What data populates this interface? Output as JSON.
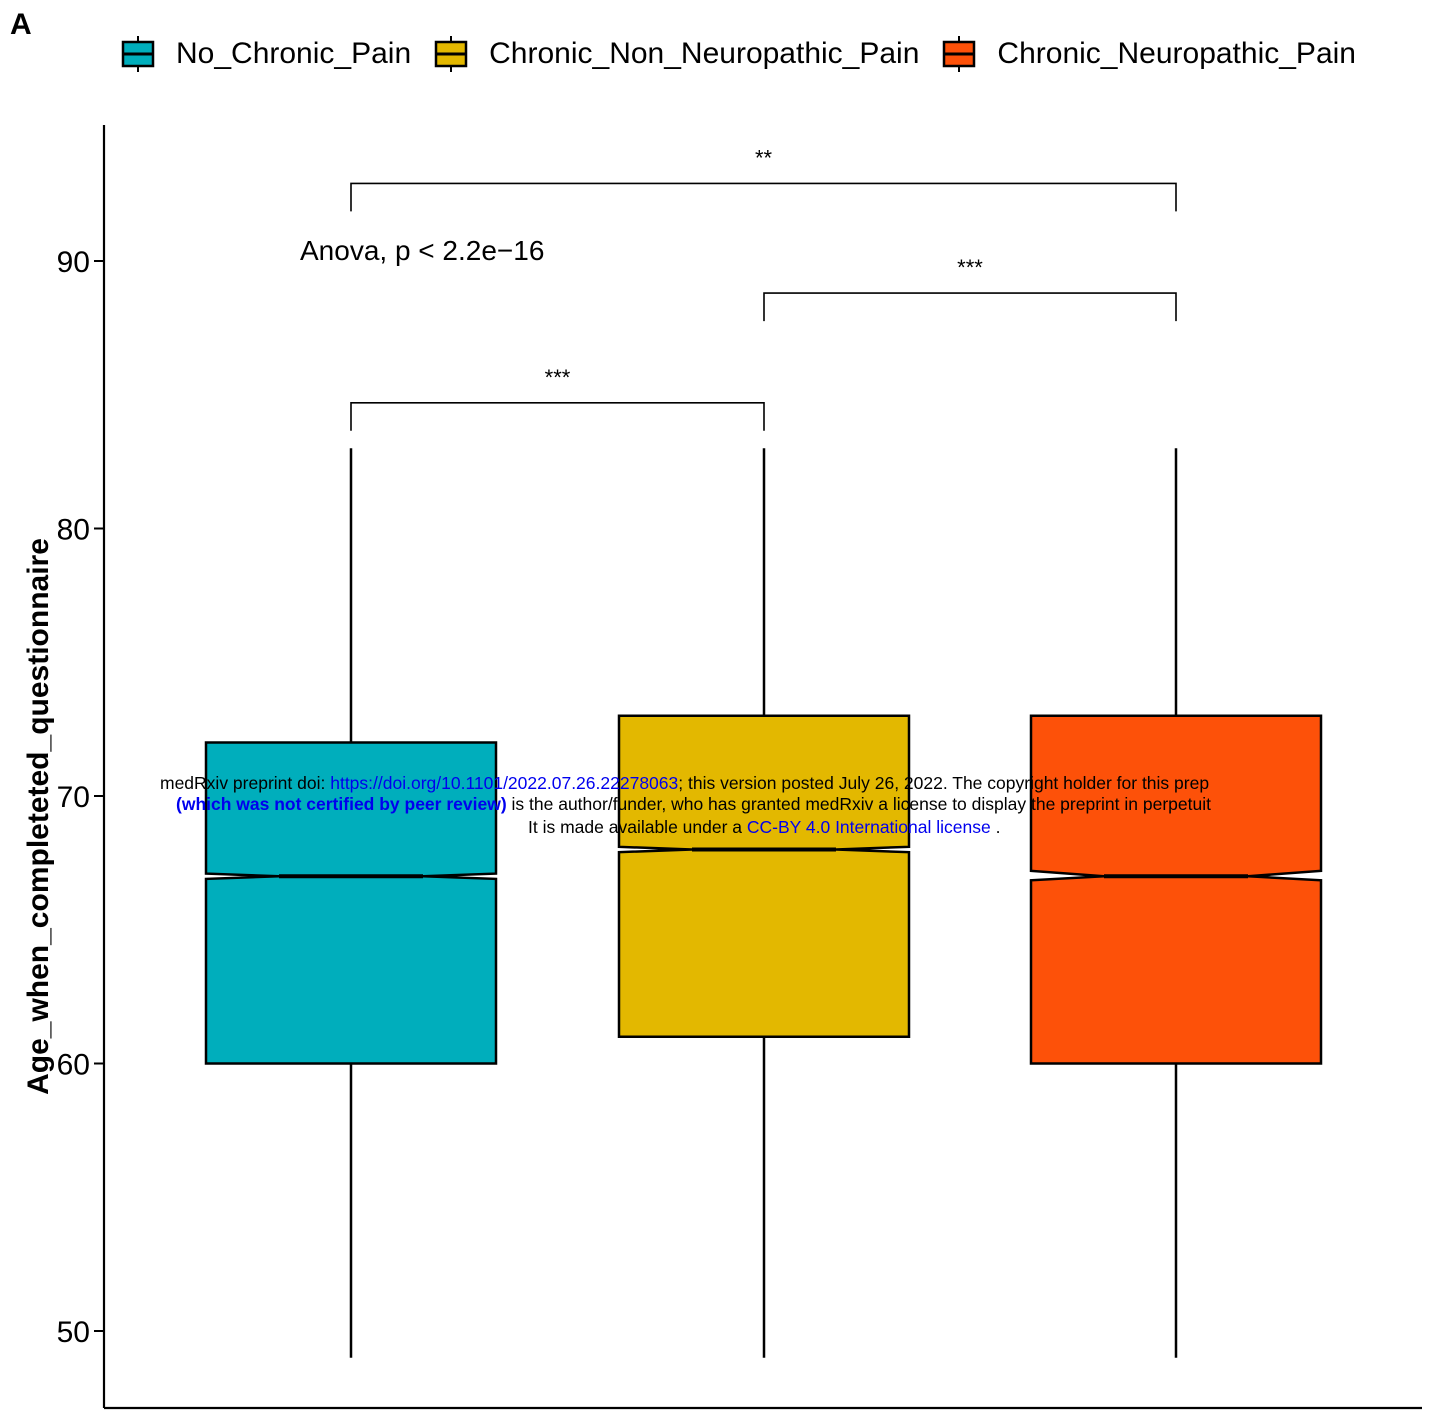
{
  "panel_label": "A",
  "colors": {
    "No_Chronic_Pain": "#00AEBC",
    "Chronic_Non_Neuropathic_Pain": "#E3B800",
    "Chronic_Neuropathic_Pain": "#FD5109"
  },
  "watermark": {
    "line1_prefix": "medRxiv preprint doi: ",
    "line1_link": "https://doi.org/10.1101/2022.07.26.22278063",
    "line1_suffix": "; this version posted July 26, 2022. The copyright holder for this prep",
    "line2_bold": "(which was not certified by peer review)",
    "line2_suffix": " is the author/funder, who has granted medRxiv a license to display the preprint in perpetuit",
    "line3_prefix": "It is made available under a ",
    "line3_link": "CC-BY 4.0 International license",
    "line3_suffix": " ."
  },
  "chart_data": {
    "type": "boxplot",
    "ylabel": "Age_when_completeted_questionnaire",
    "xlabel": "",
    "ylim": [
      46,
      95
    ],
    "yticks": [
      50,
      60,
      70,
      80,
      90
    ],
    "notched": true,
    "legend_position": "top",
    "categories": [
      "No_Chronic_Pain",
      "Chronic_Non_Neuropathic_Pain",
      "Chronic_Neuropathic_Pain"
    ],
    "boxes": [
      {
        "name": "No_Chronic_Pain",
        "min": 49,
        "q1": 60,
        "median": 67,
        "q3": 72,
        "max": 83,
        "notch_low": 66.9,
        "notch_high": 67.1
      },
      {
        "name": "Chronic_Non_Neuropathic_Pain",
        "min": 49,
        "q1": 61,
        "median": 68,
        "q3": 73,
        "max": 83,
        "notch_low": 67.9,
        "notch_high": 68.1
      },
      {
        "name": "Chronic_Neuropathic_Pain",
        "min": 49,
        "q1": 60,
        "median": 67,
        "q3": 73,
        "max": 83,
        "notch_low": 66.85,
        "notch_high": 67.2
      }
    ],
    "anova_text": "Anova, p < 2.2e−16",
    "anova_y": 90,
    "comparisons": [
      {
        "from": 0,
        "to": 1,
        "label": "***",
        "y": 84.7
      },
      {
        "from": 1,
        "to": 2,
        "label": "***",
        "y": 88.8
      },
      {
        "from": 0,
        "to": 2,
        "label": "**",
        "y": 92.9
      }
    ]
  }
}
